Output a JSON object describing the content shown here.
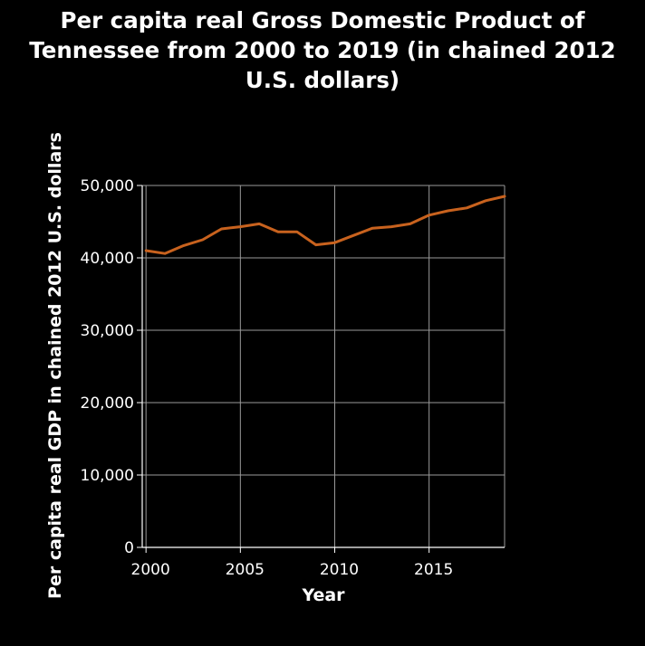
{
  "chart_data": {
    "type": "line",
    "title_lines": [
      "Per capita real Gross Domestic Product of",
      "Tennessee from 2000 to 2019 (in chained 2012",
      "U.S. dollars)"
    ],
    "xlabel": "Year",
    "ylabel": "Per capita real GDP in chained 2012 U.S. dollars",
    "x": [
      2000,
      2001,
      2002,
      2003,
      2004,
      2005,
      2006,
      2007,
      2008,
      2009,
      2010,
      2011,
      2012,
      2013,
      2014,
      2015,
      2016,
      2017,
      2018,
      2019
    ],
    "series": [
      {
        "values": [
          41000,
          40600,
          41700,
          42500,
          44000,
          44300,
          44700,
          43600,
          43600,
          41800,
          42100,
          43100,
          44100,
          44300,
          44700,
          45900,
          46500,
          46900,
          47900,
          48500
        ],
        "color": "#c8621e"
      }
    ],
    "xlim": [
      1999.8,
      2019
    ],
    "ylim": [
      0,
      50000
    ],
    "xticks": [
      2000,
      2005,
      2010,
      2015
    ],
    "xtick_labels": [
      "2000",
      "2005",
      "2010",
      "2015"
    ],
    "yticks": [
      0,
      10000,
      20000,
      30000,
      40000,
      50000
    ],
    "ytick_labels": [
      "0",
      "10,000",
      "20,000",
      "30,000",
      "40,000",
      "50,000"
    ],
    "grid": true
  }
}
